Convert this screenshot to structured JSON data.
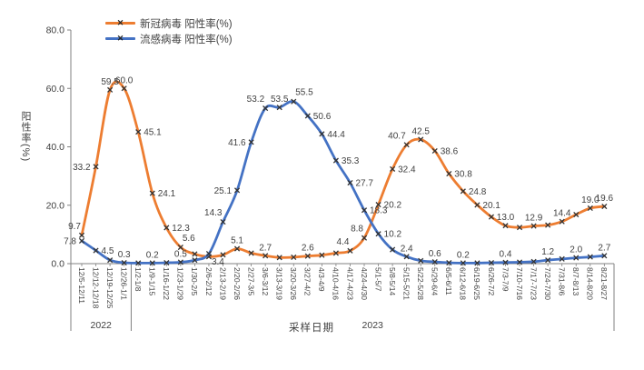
{
  "legend": {
    "items": [
      {
        "label": "新冠病毒 阳性率(%)",
        "color": "#ED7D31"
      },
      {
        "label": "流感病毒 阳性率(%)",
        "color": "#4472C4"
      }
    ]
  },
  "axes": {
    "y_title": "阳性率(%)",
    "x_title": "采样日期",
    "y_tick_labels": [
      "0.0",
      "20.0",
      "40.0",
      "60.0",
      "80.0"
    ]
  },
  "chart_data": {
    "type": "line",
    "title": "",
    "xlabel": "采样日期",
    "ylabel": "阳性率(%)",
    "ylim": [
      0,
      80
    ],
    "y_ticks": [
      0,
      20,
      40,
      60,
      80
    ],
    "grid": false,
    "smooth": true,
    "marker": "x",
    "legend_position": "top-left",
    "x_tick_rotation": 90,
    "categories": [
      "12/5-12/11",
      "12/12-12/18",
      "12/19-12/25",
      "12/26-1/1",
      "1/2-1/8",
      "1/9-1/15",
      "1/16-1/22",
      "1/23-1/29",
      "1/30-2/5",
      "2/6-2/12",
      "2/13-2/19",
      "2/20-2/26",
      "2/27-3/5",
      "3/6-3/12",
      "3/13-3/19",
      "3/20-3/26",
      "3/27-4/2",
      "4/3-4/9",
      "4/10-4/16",
      "4/17-4/23",
      "4/24-4/30",
      "5/1-5/7",
      "5/8-5/14",
      "5/15-5/21",
      "5/22-5/28",
      "5/29-6/4",
      "6/5-6/11",
      "6/12-6/18",
      "6/19-6/25",
      "6/26-7/2",
      "7/3-7/9",
      "7/10-7/16",
      "7/17-7/23",
      "7/24-7/30",
      "7/31-8/6",
      "8/7-8/13",
      "8/14-8/20",
      "8/21-8/27"
    ],
    "year_groups": [
      {
        "label": "2022",
        "from": 0,
        "to": 3
      },
      {
        "label": "2023",
        "from": 4,
        "to": 37
      }
    ],
    "series": [
      {
        "name": "新冠病毒 阳性率(%)",
        "color": "#ED7D31",
        "values": [
          9.7,
          33.2,
          59.5,
          60.0,
          45.1,
          24.1,
          12.3,
          5.6,
          3.3,
          2.4,
          3.0,
          5.1,
          3.6,
          2.7,
          2.1,
          2.2,
          2.6,
          2.9,
          3.6,
          4.4,
          8.8,
          20.2,
          32.4,
          40.7,
          42.5,
          38.6,
          30.8,
          24.8,
          20.1,
          16.0,
          13.0,
          12.4,
          12.9,
          13.2,
          14.4,
          16.8,
          19.0,
          19.6
        ],
        "labeled_points": [
          {
            "i": 0,
            "text": "9.7",
            "pos": "above-left"
          },
          {
            "i": 1,
            "text": "33.2",
            "pos": "left"
          },
          {
            "i": 2,
            "text": "59.5",
            "pos": "above"
          },
          {
            "i": 3,
            "text": "60.0",
            "pos": "above"
          },
          {
            "i": 4,
            "text": "45.1",
            "pos": "right"
          },
          {
            "i": 5,
            "text": "24.1",
            "pos": "right"
          },
          {
            "i": 6,
            "text": "12.3",
            "pos": "right"
          },
          {
            "i": 7,
            "text": "5.6",
            "pos": "above-right"
          },
          {
            "i": 11,
            "text": "5.1",
            "pos": "above"
          },
          {
            "i": 13,
            "text": "2.7",
            "pos": "above"
          },
          {
            "i": 16,
            "text": "2.6",
            "pos": "above"
          },
          {
            "i": 19,
            "text": "4.4",
            "pos": "above-left"
          },
          {
            "i": 20,
            "text": "8.8",
            "pos": "above-left"
          },
          {
            "i": 21,
            "text": "20.2",
            "pos": "right"
          },
          {
            "i": 22,
            "text": "32.4",
            "pos": "right"
          },
          {
            "i": 23,
            "text": "40.7",
            "pos": "above-left"
          },
          {
            "i": 24,
            "text": "42.5",
            "pos": "above"
          },
          {
            "i": 25,
            "text": "38.6",
            "pos": "right"
          },
          {
            "i": 26,
            "text": "30.8",
            "pos": "right"
          },
          {
            "i": 27,
            "text": "24.8",
            "pos": "right"
          },
          {
            "i": 28,
            "text": "20.1",
            "pos": "right"
          },
          {
            "i": 30,
            "text": "13.0",
            "pos": "above"
          },
          {
            "i": 32,
            "text": "12.9",
            "pos": "above"
          },
          {
            "i": 34,
            "text": "14.4",
            "pos": "above"
          },
          {
            "i": 36,
            "text": "19.0",
            "pos": "above"
          },
          {
            "i": 37,
            "text": "19.6",
            "pos": "above"
          }
        ]
      },
      {
        "name": "流感病毒 阳性率(%)",
        "color": "#4472C4",
        "values": [
          7.8,
          4.5,
          1.2,
          0.3,
          0.2,
          0.2,
          0.3,
          0.5,
          1.2,
          3.4,
          14.3,
          25.1,
          41.6,
          53.2,
          53.5,
          55.5,
          50.6,
          44.4,
          35.3,
          27.7,
          18.3,
          10.2,
          4.8,
          2.4,
          1.0,
          0.6,
          0.3,
          0.2,
          0.2,
          0.3,
          0.4,
          0.5,
          0.7,
          1.2,
          1.6,
          2.0,
          2.3,
          2.7
        ],
        "labeled_points": [
          {
            "i": 0,
            "text": "7.8",
            "pos": "left"
          },
          {
            "i": 1,
            "text": "4.5",
            "pos": "right"
          },
          {
            "i": 3,
            "text": "0.3",
            "pos": "above"
          },
          {
            "i": 5,
            "text": "0.2",
            "pos": "above"
          },
          {
            "i": 7,
            "text": "0.5",
            "pos": "above"
          },
          {
            "i": 9,
            "text": "3.4",
            "pos": "below-right"
          },
          {
            "i": 10,
            "text": "14.3",
            "pos": "above-left"
          },
          {
            "i": 11,
            "text": "25.1",
            "pos": "left"
          },
          {
            "i": 12,
            "text": "41.6",
            "pos": "left"
          },
          {
            "i": 13,
            "text": "53.2",
            "pos": "above-left"
          },
          {
            "i": 14,
            "text": "53.5",
            "pos": "above"
          },
          {
            "i": 15,
            "text": "55.5",
            "pos": "above-right"
          },
          {
            "i": 16,
            "text": "50.6",
            "pos": "right"
          },
          {
            "i": 17,
            "text": "44.4",
            "pos": "right"
          },
          {
            "i": 18,
            "text": "35.3",
            "pos": "right"
          },
          {
            "i": 19,
            "text": "27.7",
            "pos": "right"
          },
          {
            "i": 20,
            "text": "18.3",
            "pos": "right"
          },
          {
            "i": 21,
            "text": "10.2",
            "pos": "right"
          },
          {
            "i": 23,
            "text": "2.4",
            "pos": "above"
          },
          {
            "i": 25,
            "text": "0.6",
            "pos": "above"
          },
          {
            "i": 27,
            "text": "0.2",
            "pos": "above"
          },
          {
            "i": 30,
            "text": "0.4",
            "pos": "above"
          },
          {
            "i": 33,
            "text": "1.2",
            "pos": "above"
          },
          {
            "i": 35,
            "text": "2.0",
            "pos": "above"
          },
          {
            "i": 37,
            "text": "2.7",
            "pos": "above"
          }
        ]
      }
    ]
  }
}
